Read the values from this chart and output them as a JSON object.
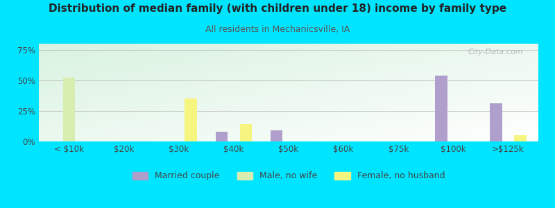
{
  "title": "Distribution of median family (with children under 18) income by family type",
  "subtitle": "All residents in Mechanicsville, IA",
  "categories": [
    "< $10k",
    "$20k",
    "$30k",
    "$40k",
    "$50k",
    "$60k",
    "$75k",
    "$100k",
    ">$125k"
  ],
  "married_couple": [
    0,
    0,
    0,
    8,
    9,
    0,
    0,
    54,
    31
  ],
  "male_no_wife": [
    52,
    0,
    0,
    0,
    0,
    0,
    0,
    0,
    0
  ],
  "female_no_husband": [
    0,
    0,
    35,
    14,
    0,
    0,
    0,
    0,
    5
  ],
  "married_couple_color": "#b09fcc",
  "male_no_wife_color": "#d8edb0",
  "female_no_husband_color": "#f5f580",
  "bg_color": "#00e5ff",
  "title_color": "#222222",
  "subtitle_color": "#555555",
  "tick_color": "#444444",
  "yticks": [
    0,
    25,
    50,
    75
  ],
  "ylim": [
    0,
    80
  ],
  "watermark": "City-Data.com",
  "bar_width": 0.22
}
